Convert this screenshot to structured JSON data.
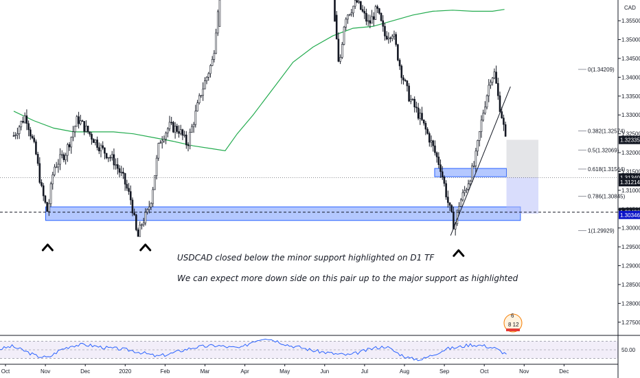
{
  "chart_data": {
    "type": "candlestick",
    "symbol_line1": "",
    "symbol_line2": "CAD",
    "price_axis": {
      "range": [
        1.2715,
        1.3605
      ],
      "ticks": [
        1.355,
        1.35,
        1.345,
        1.34,
        1.335,
        1.33,
        1.325,
        1.32,
        1.315,
        1.31,
        1.305,
        1.3,
        1.295,
        1.29,
        1.285,
        1.28,
        1.275
      ],
      "tick_labels": [
        "1.35500",
        "1.35000",
        "1.34500",
        "1.34000",
        "1.33500",
        "1.33000",
        "1.32500",
        "1.32000",
        "1.31500",
        "1.31000",
        "1.30500",
        "1.30000",
        "1.29500",
        "1.29000",
        "1.28500",
        "1.28000",
        "1.27500"
      ]
    },
    "time_axis": {
      "labels": [
        "Oct",
        "Nov",
        "Dec",
        "2020",
        "Feb",
        "Mar",
        "Apr",
        "May",
        "Jun",
        "Jul",
        "Aug",
        "Sep",
        "Oct",
        "Nov",
        "Dec"
      ],
      "months_index": [
        0,
        1,
        2,
        3,
        4,
        5,
        6,
        7,
        8,
        9,
        10,
        11,
        12,
        13,
        14
      ]
    },
    "price_path": [
      [
        0,
        1.3245
      ],
      [
        0.3,
        1.33
      ],
      [
        0.55,
        1.32
      ],
      [
        0.7,
        1.31
      ],
      [
        0.85,
        1.304
      ],
      [
        1.0,
        1.316
      ],
      [
        1.3,
        1.32
      ],
      [
        1.6,
        1.329
      ],
      [
        1.9,
        1.325
      ],
      [
        2.2,
        1.321
      ],
      [
        2.5,
        1.318
      ],
      [
        2.75,
        1.313
      ],
      [
        2.95,
        1.307
      ],
      [
        3.1,
        1.297
      ],
      [
        3.2,
        1.301
      ],
      [
        3.35,
        1.304
      ],
      [
        3.45,
        1.308
      ],
      [
        3.65,
        1.323
      ],
      [
        3.9,
        1.327
      ],
      [
        4.15,
        1.326
      ],
      [
        4.35,
        1.322
      ],
      [
        4.7,
        1.336
      ],
      [
        5.0,
        1.345
      ],
      [
        5.3,
        1.38
      ],
      [
        5.6,
        1.42
      ],
      [
        6.0,
        1.44
      ],
      [
        6.5,
        1.41
      ],
      [
        7.0,
        1.39
      ],
      [
        7.6,
        1.37
      ],
      [
        8.0,
        1.362
      ],
      [
        8.15,
        1.342
      ],
      [
        8.3,
        1.356
      ],
      [
        8.6,
        1.36
      ],
      [
        8.9,
        1.354
      ],
      [
        9.1,
        1.358
      ],
      [
        9.3,
        1.351
      ],
      [
        9.5,
        1.352
      ],
      [
        9.7,
        1.342
      ],
      [
        9.9,
        1.335
      ],
      [
        10.2,
        1.329
      ],
      [
        10.45,
        1.323
      ],
      [
        10.7,
        1.316
      ],
      [
        10.9,
        1.306
      ],
      [
        11.05,
        1.3
      ],
      [
        11.15,
        1.306
      ],
      [
        11.35,
        1.311
      ],
      [
        11.55,
        1.317
      ],
      [
        11.75,
        1.33
      ],
      [
        11.95,
        1.34
      ],
      [
        12.05,
        1.341
      ],
      [
        12.15,
        1.334
      ],
      [
        12.25,
        1.329
      ],
      [
        12.35,
        1.3214
      ]
    ],
    "ma_path": [
      [
        0,
        1.331
      ],
      [
        0.5,
        1.3285
      ],
      [
        1.0,
        1.3265
      ],
      [
        1.5,
        1.3255
      ],
      [
        2.0,
        1.3255
      ],
      [
        2.5,
        1.3255
      ],
      [
        3.0,
        1.325
      ],
      [
        3.5,
        1.324
      ],
      [
        4.0,
        1.323
      ],
      [
        4.5,
        1.3218
      ],
      [
        5.0,
        1.321
      ],
      [
        5.3,
        1.3205
      ],
      [
        5.6,
        1.325
      ],
      [
        6.0,
        1.33
      ],
      [
        6.5,
        1.337
      ],
      [
        7.0,
        1.344
      ],
      [
        7.5,
        1.348
      ],
      [
        8.0,
        1.351
      ],
      [
        8.5,
        1.353
      ],
      [
        9.0,
        1.3535
      ],
      [
        9.5,
        1.355
      ],
      [
        10.0,
        1.3565
      ],
      [
        10.5,
        1.3575
      ],
      [
        11.0,
        1.3578
      ],
      [
        11.5,
        1.3575
      ],
      [
        12.0,
        1.3575
      ],
      [
        12.3,
        1.358
      ]
    ],
    "zones": [
      {
        "name": "major-support-zone",
        "x": [
          0.8,
          12.7
        ],
        "y": [
          1.302,
          1.3056
        ],
        "color": "#2962ff"
      },
      {
        "name": "minor-support-zone",
        "x": [
          10.55,
          12.35
        ],
        "y": [
          1.3136,
          1.3158
        ],
        "color": "#2962ff"
      },
      {
        "name": "target-box-upper",
        "x": [
          12.35,
          13.15
        ],
        "y": [
          1.3134,
          1.3234
        ],
        "color": "#b2b5be"
      },
      {
        "name": "target-box-lower",
        "x": [
          12.35,
          13.15
        ],
        "y": [
          1.3038,
          1.3134
        ],
        "color": "#b3bcfa"
      }
    ],
    "trendline": {
      "x": [
        10.95,
        12.45
      ],
      "y": [
        1.298,
        1.3375
      ]
    },
    "fibonacci": [
      {
        "label": "0(1.34209)",
        "value": 1.34209
      },
      {
        "label": "0.382(1.32574)",
        "value": 1.32574
      },
      {
        "label": "0.5(1.32069)",
        "value": 1.32069
      },
      {
        "label": "0.618(1.31564)",
        "value": 1.31564
      },
      {
        "label": "0.786(1.30845)",
        "value": 1.30845
      },
      {
        "label": "1(1.29929)",
        "value": 1.29929
      }
    ],
    "price_tags": [
      {
        "label": "1.32335",
        "value": 1.32335,
        "bg": "#131722"
      },
      {
        "label": "1.31340",
        "value": 1.3134,
        "bg": "#131722"
      },
      {
        "label": "1.31214",
        "value": 1.31214,
        "bg": "#131722"
      },
      {
        "label": "1.30426",
        "value": 1.30426,
        "bg": "#131722"
      },
      {
        "label": "1.30346",
        "value": 1.30346,
        "bg": "#0c14c9"
      }
    ],
    "horizontal_lines": [
      {
        "value": 1.3134,
        "style": "dotted"
      },
      {
        "value": 1.3042,
        "style": "dashed"
      }
    ],
    "pivot_markers": [
      {
        "x": 0.85,
        "value": 1.3005
      },
      {
        "x": 3.3,
        "value": 1.3005
      },
      {
        "x": 11.15,
        "value": 1.299
      }
    ],
    "annotations": [
      "USDCAD closed below the minor support highlighted on D1 TF",
      "We can expect more down side on this pair up to the major support as highlighted"
    ],
    "rsi": {
      "level_label": "50.00",
      "levels": [
        70,
        50,
        30
      ],
      "range": [
        20,
        80
      ],
      "values": [
        52,
        58,
        48,
        36,
        32,
        50,
        60,
        62,
        58,
        54,
        52,
        48,
        42,
        35,
        40,
        48,
        55,
        58,
        60,
        56,
        54,
        70,
        78,
        70,
        60,
        55,
        48,
        44,
        40,
        38,
        46,
        54,
        58,
        42,
        30,
        28,
        40,
        52,
        56,
        62,
        60,
        54,
        40
      ]
    },
    "badge": {
      "top": "6",
      "bottom": "8 12"
    },
    "colors": {
      "candle": "#131722",
      "ma": "#22ab4e",
      "rsi": "#2962ff",
      "rsi_band": "#7e57c2"
    }
  }
}
